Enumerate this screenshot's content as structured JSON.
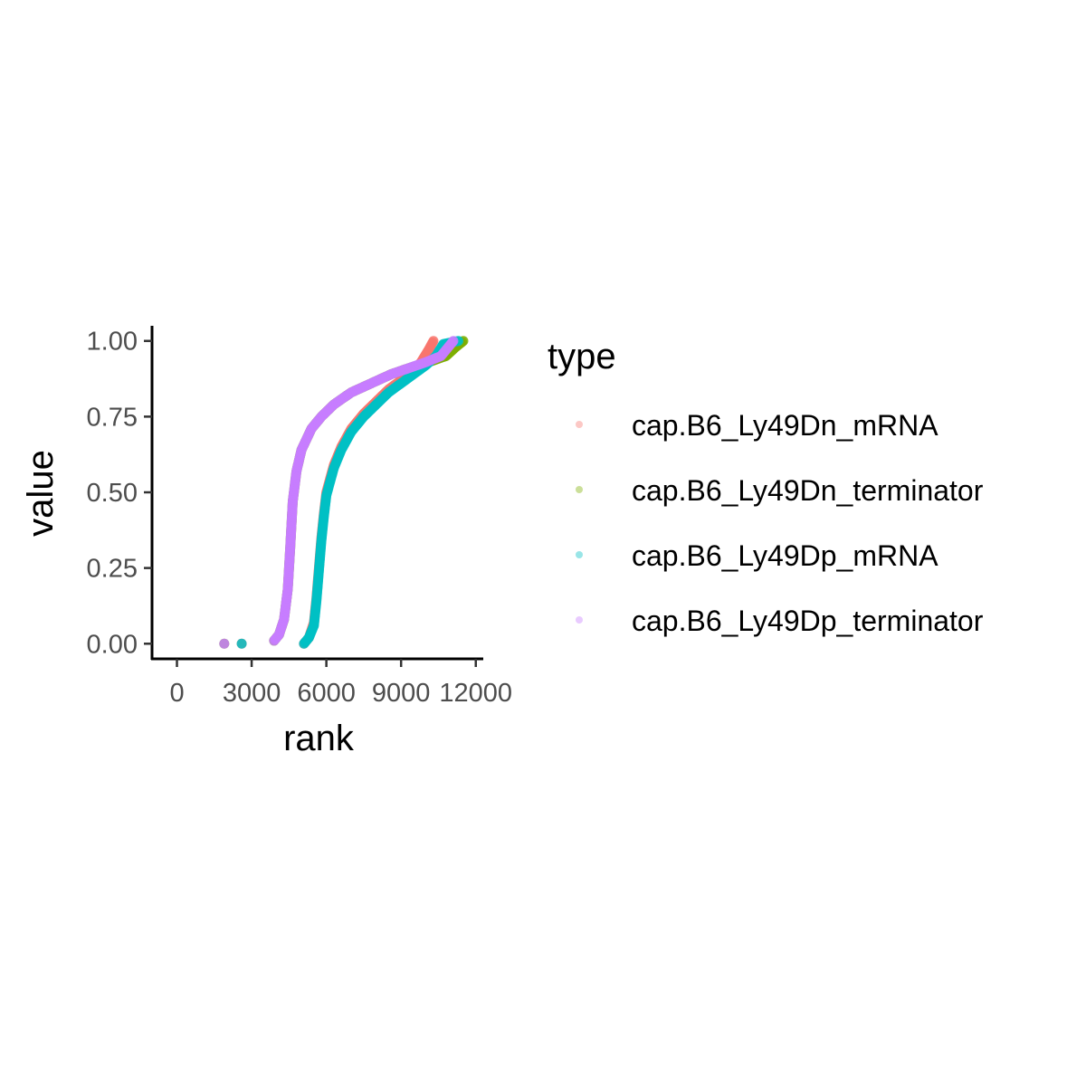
{
  "chart_data": {
    "type": "scatter",
    "xlabel": "rank",
    "ylabel": "value",
    "xlim": [
      -1000,
      12300
    ],
    "ylim": [
      -0.05,
      1.05
    ],
    "x_ticks": [
      0,
      3000,
      6000,
      9000,
      12000
    ],
    "x_tick_labels": [
      "0",
      "3000",
      "6000",
      "9000",
      "12000"
    ],
    "y_ticks": [
      0,
      0.25,
      0.5,
      0.75,
      1.0
    ],
    "y_tick_labels": [
      "0.00",
      "0.25",
      "0.50",
      "0.75",
      "1.00"
    ],
    "grid": false,
    "legend": {
      "title": "type",
      "position": "right"
    },
    "series": [
      {
        "name": "cap.B6_Ly49Dn_mRNA",
        "color": "#F8766D",
        "points": [
          [
            2600,
            0
          ],
          [
            5100,
            0
          ],
          [
            5300,
            0.02
          ],
          [
            5500,
            0.07
          ],
          [
            5600,
            0.15
          ],
          [
            5700,
            0.25
          ],
          [
            5800,
            0.35
          ],
          [
            5900,
            0.43
          ],
          [
            6000,
            0.5
          ],
          [
            6300,
            0.59
          ],
          [
            6600,
            0.65
          ],
          [
            7000,
            0.71
          ],
          [
            7500,
            0.76
          ],
          [
            8000,
            0.8
          ],
          [
            8500,
            0.84
          ],
          [
            9000,
            0.87
          ],
          [
            9400,
            0.89
          ],
          [
            9800,
            0.93
          ],
          [
            10100,
            0.97
          ],
          [
            10300,
            1.0
          ]
        ]
      },
      {
        "name": "cap.B6_Ly49Dn_terminator",
        "color": "#7CAE00",
        "points": [
          [
            1900,
            0
          ],
          [
            3900,
            0.01
          ],
          [
            4100,
            0.03
          ],
          [
            4300,
            0.08
          ],
          [
            4450,
            0.18
          ],
          [
            4550,
            0.32
          ],
          [
            4650,
            0.47
          ],
          [
            4800,
            0.57
          ],
          [
            5000,
            0.64
          ],
          [
            5400,
            0.71
          ],
          [
            5800,
            0.75
          ],
          [
            6300,
            0.79
          ],
          [
            7000,
            0.83
          ],
          [
            7800,
            0.86
          ],
          [
            8600,
            0.89
          ],
          [
            9300,
            0.91
          ],
          [
            10100,
            0.93
          ],
          [
            10800,
            0.95
          ],
          [
            11200,
            0.98
          ],
          [
            11500,
            1.0
          ]
        ]
      },
      {
        "name": "cap.B6_Ly49Dp_mRNA",
        "color": "#00BFC4",
        "points": [
          [
            2600,
            0
          ],
          [
            5100,
            0
          ],
          [
            5300,
            0.02
          ],
          [
            5500,
            0.06
          ],
          [
            5600,
            0.14
          ],
          [
            5700,
            0.24
          ],
          [
            5800,
            0.34
          ],
          [
            5900,
            0.42
          ],
          [
            6000,
            0.49
          ],
          [
            6300,
            0.58
          ],
          [
            6600,
            0.64
          ],
          [
            7000,
            0.7
          ],
          [
            7500,
            0.75
          ],
          [
            8000,
            0.79
          ],
          [
            8500,
            0.83
          ],
          [
            9000,
            0.86
          ],
          [
            9500,
            0.89
          ],
          [
            10000,
            0.92
          ],
          [
            10400,
            0.95
          ],
          [
            10700,
            0.99
          ],
          [
            11300,
            1.0
          ]
        ]
      },
      {
        "name": "cap.B6_Ly49Dp_terminator",
        "color": "#C77CFF",
        "points": [
          [
            1900,
            0
          ],
          [
            3900,
            0.01
          ],
          [
            4100,
            0.03
          ],
          [
            4300,
            0.08
          ],
          [
            4450,
            0.18
          ],
          [
            4550,
            0.32
          ],
          [
            4650,
            0.47
          ],
          [
            4800,
            0.57
          ],
          [
            5000,
            0.64
          ],
          [
            5400,
            0.71
          ],
          [
            5800,
            0.75
          ],
          [
            6300,
            0.79
          ],
          [
            7000,
            0.83
          ],
          [
            7800,
            0.86
          ],
          [
            8600,
            0.89
          ],
          [
            9300,
            0.91
          ],
          [
            10000,
            0.93
          ],
          [
            10600,
            0.95
          ],
          [
            10900,
            0.98
          ],
          [
            11100,
            1.0
          ]
        ]
      }
    ]
  }
}
